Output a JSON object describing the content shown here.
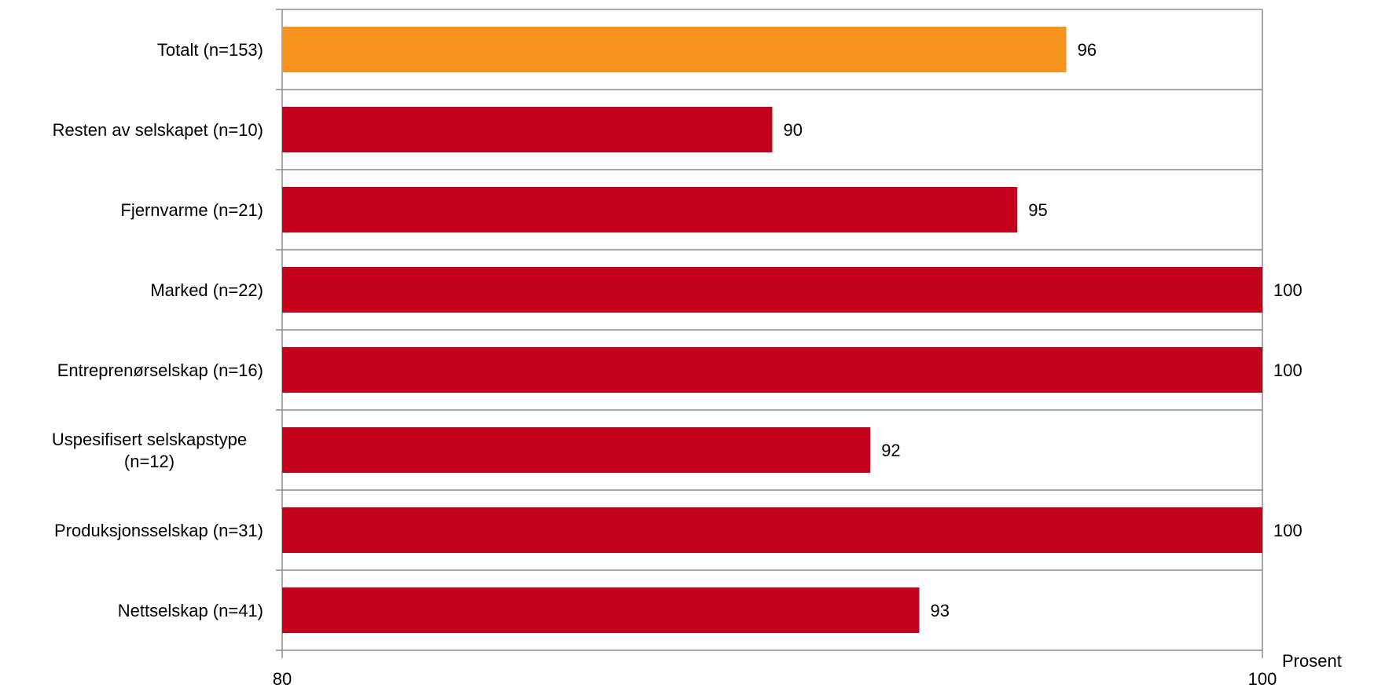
{
  "chart_data": {
    "type": "bar",
    "orientation": "horizontal",
    "categories": [
      [
        "Totalt (n=153)"
      ],
      [
        "Resten av selskapet (n=10)"
      ],
      [
        "Fjernvarme (n=21)"
      ],
      [
        "Marked (n=22)"
      ],
      [
        "Entreprenørselskap (n=16)"
      ],
      [
        "Uspesifisert selskapstype",
        "(n=12)"
      ],
      [
        "Produksjonsselskap (n=31)"
      ],
      [
        "Nettselskap (n=41)"
      ]
    ],
    "values": [
      96,
      90,
      95,
      100,
      100,
      92,
      100,
      93
    ],
    "data_labels": [
      "96",
      "90",
      "95",
      "100",
      "100",
      "92",
      "100",
      "93"
    ],
    "bar_colors": [
      "#f7941d",
      "#c4001a",
      "#c4001a",
      "#c4001a",
      "#c4001a",
      "#c4001a",
      "#c4001a",
      "#c4001a"
    ],
    "xlim": [
      80,
      100
    ],
    "x_ticks": [
      "80",
      "100"
    ],
    "xlabel": "Prosent",
    "grid": "horizontal category separators",
    "legend": "none"
  }
}
